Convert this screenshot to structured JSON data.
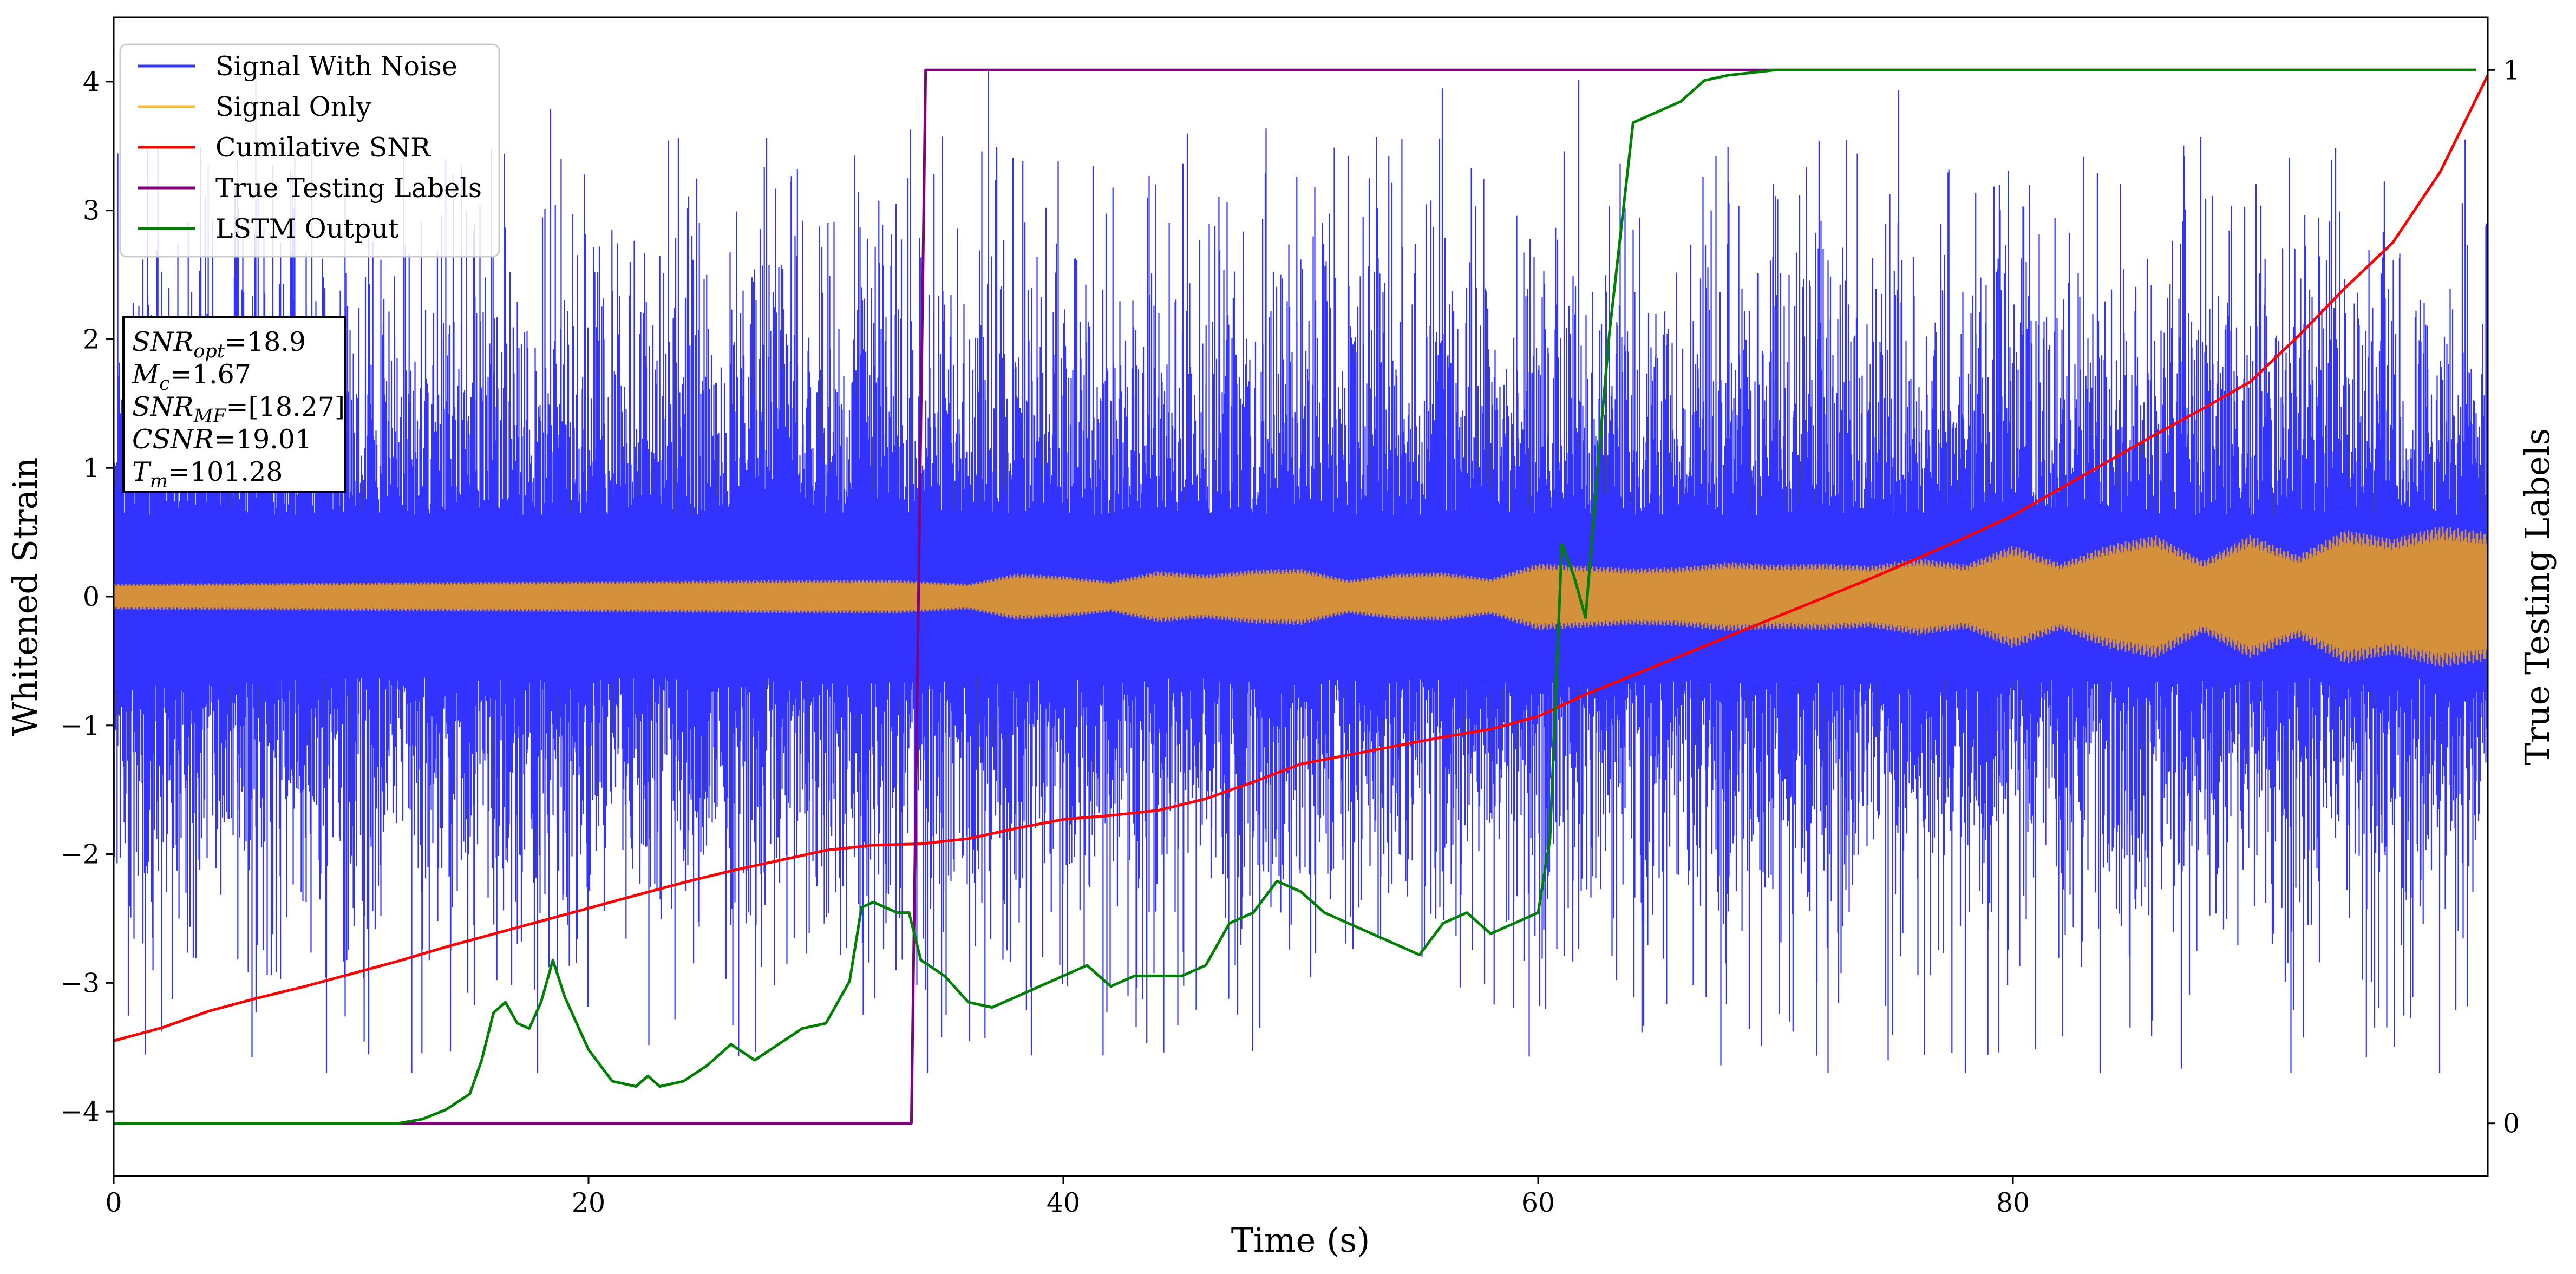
{
  "chart_data": {
    "type": "line",
    "xlabel": "Time (s)",
    "ylabel": "Whitened Strain",
    "y2label": "True Testing Labels",
    "xlim": [
      0,
      100
    ],
    "ylim": [
      -4.5,
      4.5
    ],
    "y2lim": [
      -0.05,
      1.05
    ],
    "x_ticks": [
      "0",
      "20",
      "40",
      "60",
      "80"
    ],
    "y_ticks": [
      "−4",
      "−3",
      "−2",
      "−1",
      "0",
      "1",
      "2",
      "3",
      "4"
    ],
    "y2_ticks": [
      "0",
      "1"
    ],
    "legend_position": "top-left",
    "legend": [
      {
        "label": "Signal With Noise",
        "color": "#3333ff"
      },
      {
        "label": "Signal Only",
        "color": "#ffb833"
      },
      {
        "label": "Cumilative SNR",
        "color": "#ff0000"
      },
      {
        "label": "True Testing Labels",
        "color": "#800080"
      },
      {
        "label": "LSTM Output",
        "color": "#008000"
      }
    ],
    "annotation": {
      "lines": [
        {
          "var": "SNR",
          "sub": "opt",
          "value": "=18.9"
        },
        {
          "var": "M",
          "sub": "c",
          "value": "=1.67"
        },
        {
          "var": "SNR",
          "sub": "MF",
          "value": "=[18.27]"
        },
        {
          "var": "CSNR",
          "sub": "",
          "value": "=19.01"
        },
        {
          "var": "T",
          "sub": "m",
          "value": "=101.28"
        }
      ]
    },
    "series": [
      {
        "name": "Signal With Noise",
        "color": "#3333ff",
        "axis": "left",
        "description_values": {
          "x_range": [
            0,
            100
          ],
          "inner_core_abs": 0.08,
          "typical_amplitude": 1.5,
          "peak_range": [
            -3.7,
            4.1
          ]
        }
      },
      {
        "name": "Signal Only",
        "color": "#ffb833",
        "axis": "left",
        "envelope": {
          "x": [
            0,
            10,
            20,
            30,
            33,
            36,
            38,
            40,
            42,
            44,
            46,
            48,
            50,
            52,
            54,
            56,
            58,
            60,
            62,
            64,
            66,
            68,
            70,
            72,
            74,
            76,
            78,
            80,
            82,
            84,
            86,
            88,
            90,
            92,
            94,
            96,
            98,
            100
          ],
          "amp": [
            0.1,
            0.11,
            0.12,
            0.13,
            0.13,
            0.1,
            0.18,
            0.16,
            0.12,
            0.2,
            0.17,
            0.21,
            0.22,
            0.13,
            0.18,
            0.19,
            0.14,
            0.26,
            0.24,
            0.22,
            0.23,
            0.27,
            0.25,
            0.26,
            0.24,
            0.3,
            0.25,
            0.4,
            0.26,
            0.4,
            0.48,
            0.28,
            0.48,
            0.32,
            0.52,
            0.45,
            0.55,
            0.5
          ]
        }
      },
      {
        "name": "Cumilative SNR",
        "color": "#ff0000",
        "axis": "left",
        "x": [
          0,
          2,
          4,
          6,
          8,
          10,
          12,
          14,
          16,
          18,
          20,
          22,
          24,
          26,
          28,
          30,
          32,
          34,
          36,
          38,
          40,
          42,
          44,
          46,
          48,
          50,
          52,
          54,
          56,
          58,
          60,
          62,
          64,
          66,
          68,
          70,
          72,
          74,
          76,
          78,
          80,
          82,
          84,
          86,
          88,
          90,
          92,
          94,
          96,
          98,
          100
        ],
        "y": [
          -3.45,
          -3.35,
          -3.22,
          -3.12,
          -3.03,
          -2.93,
          -2.83,
          -2.72,
          -2.62,
          -2.52,
          -2.42,
          -2.32,
          -2.22,
          -2.13,
          -2.05,
          -1.97,
          -1.93,
          -1.92,
          -1.88,
          -1.8,
          -1.73,
          -1.7,
          -1.66,
          -1.57,
          -1.44,
          -1.3,
          -1.23,
          -1.16,
          -1.09,
          -1.03,
          -0.93,
          -0.76,
          -0.61,
          -0.46,
          -0.31,
          -0.16,
          -0.01,
          0.14,
          0.3,
          0.46,
          0.63,
          0.84,
          1.05,
          1.26,
          1.46,
          1.67,
          2.02,
          2.4,
          2.75,
          3.3,
          4.05
        ]
      },
      {
        "name": "True Testing Labels",
        "color": "#800080",
        "axis": "right",
        "x": [
          0,
          33.6,
          34.2,
          99.5
        ],
        "y": [
          0,
          0,
          1,
          1
        ]
      },
      {
        "name": "LSTM Output",
        "color": "#008000",
        "axis": "right",
        "x": [
          0,
          10,
          12,
          13,
          14,
          15,
          15.5,
          16,
          16.5,
          17,
          17.5,
          18,
          18.5,
          19,
          20,
          21,
          22,
          22.5,
          23,
          24,
          25,
          26,
          27,
          28,
          29,
          30,
          31,
          31.5,
          32,
          33,
          33.5,
          34,
          35,
          36,
          37,
          38,
          39,
          40,
          41,
          42,
          43,
          44,
          45,
          46,
          47,
          48,
          49,
          50,
          51,
          52,
          53,
          54,
          55,
          56,
          57,
          58,
          59,
          60,
          60.5,
          61,
          61.5,
          62,
          62.5,
          63,
          64,
          65,
          66,
          67,
          68,
          70,
          72,
          75,
          80,
          90,
          99.5
        ],
        "y": [
          0,
          0,
          0,
          0.004,
          0.013,
          0.028,
          0.06,
          0.105,
          0.115,
          0.095,
          0.09,
          0.115,
          0.155,
          0.12,
          0.07,
          0.04,
          0.035,
          0.045,
          0.035,
          0.04,
          0.055,
          0.075,
          0.06,
          0.075,
          0.09,
          0.095,
          0.135,
          0.205,
          0.21,
          0.2,
          0.2,
          0.155,
          0.14,
          0.115,
          0.11,
          0.12,
          0.13,
          0.14,
          0.15,
          0.13,
          0.14,
          0.14,
          0.14,
          0.15,
          0.19,
          0.2,
          0.23,
          0.22,
          0.2,
          0.19,
          0.18,
          0.17,
          0.16,
          0.19,
          0.2,
          0.18,
          0.19,
          0.2,
          0.27,
          0.55,
          0.52,
          0.48,
          0.62,
          0.75,
          0.95,
          0.96,
          0.97,
          0.99,
          0.995,
          1.0,
          1.0,
          1.0,
          1.0,
          1.0,
          1.0
        ]
      }
    ]
  }
}
